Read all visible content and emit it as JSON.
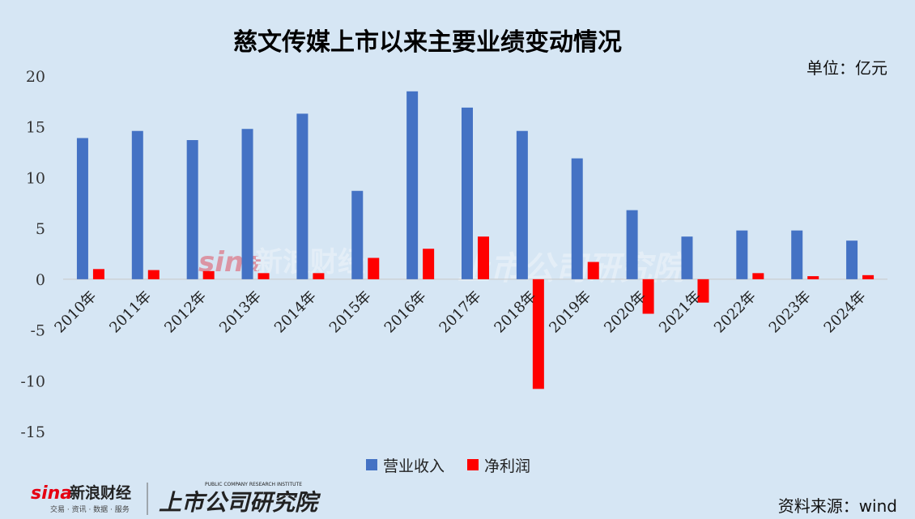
{
  "chart_data": {
    "type": "bar",
    "title": "慈文传媒上市以来主要业绩变动情况",
    "unit_label": "单位：亿元",
    "categories": [
      "2010年",
      "2011年",
      "2012年",
      "2013年",
      "2014年",
      "2015年",
      "2016年",
      "2017年",
      "2018年",
      "2019年",
      "2020年",
      "2021年",
      "2022年",
      "2023年",
      "2024年"
    ],
    "series": [
      {
        "name": "营业收入",
        "color": "#4472c4",
        "values": [
          13.9,
          14.6,
          13.7,
          14.8,
          16.3,
          8.7,
          18.5,
          16.9,
          14.6,
          11.9,
          6.8,
          4.2,
          4.8,
          4.8,
          3.8
        ]
      },
      {
        "name": "净利润",
        "color": "#ff0000",
        "values": [
          1.0,
          0.9,
          0.8,
          0.6,
          0.6,
          2.1,
          3.0,
          4.2,
          -10.8,
          1.7,
          -3.4,
          -2.3,
          0.6,
          0.3,
          0.4
        ]
      }
    ],
    "ylim": [
      -15,
      20
    ],
    "yticks": [
      -15,
      -10,
      -5,
      0,
      5,
      10,
      15,
      20
    ],
    "legend_position": "bottom",
    "grid": false
  },
  "source_label": "资料来源：wind",
  "logos": {
    "sina": "sina",
    "sina_name": "新浪财经",
    "sina_tagline": "交易 · 资讯 · 数据 · 服务",
    "institute": "上市公司研究院",
    "institute_en": "PUBLIC COMPANY RESEARCH INSTITUTE"
  }
}
